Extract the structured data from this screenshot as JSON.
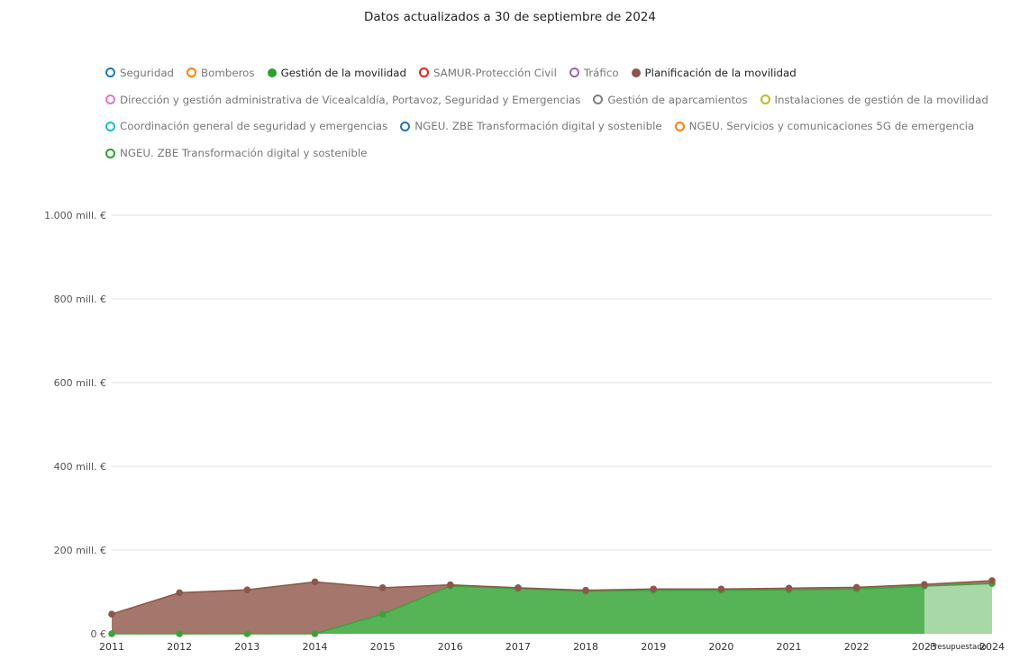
{
  "title": "Datos actualizados a 30 de septiembre de 2024",
  "legend": [
    {
      "label": "Seguridad",
      "color": "#1f77b4",
      "active": false
    },
    {
      "label": "Bomberos",
      "color": "#ff7f0e",
      "active": false
    },
    {
      "label": "Gestión de la movilidad",
      "color": "#2ca02c",
      "active": true
    },
    {
      "label": "SAMUR-Protección Civil",
      "color": "#d62728",
      "active": false
    },
    {
      "label": "Tráfico",
      "color": "#9467bd",
      "active": false
    },
    {
      "label": "Planificación de la movilidad",
      "color": "#8c564b",
      "active": true
    },
    {
      "label": "Dirección y gestión administrativa de Vicealcaldía, Portavoz, Seguridad y Emergencias",
      "color": "#e377c2",
      "active": false
    },
    {
      "label": "Gestión de aparcamientos",
      "color": "#7f7f7f",
      "active": false
    },
    {
      "label": "Instalaciones de gestión de la movilidad",
      "color": "#bcbd22",
      "active": false
    },
    {
      "label": "Coordinación general de seguridad y emergencias",
      "color": "#17becf",
      "active": false
    },
    {
      "label": "NGEU. ZBE Transformación digital y sostenible",
      "color": "#1f77b4",
      "active": false
    },
    {
      "label": "NGEU. Servicios y comunicaciones 5G de emergencia",
      "color": "#ff7f0e",
      "active": false
    },
    {
      "label": "NGEU. ZBE Transformación digital y sostenible",
      "color": "#2ca02c",
      "active": false
    }
  ],
  "chart_data": {
    "type": "area",
    "x": [
      "2011",
      "2012",
      "2013",
      "2014",
      "2015",
      "2016",
      "2017",
      "2018",
      "2019",
      "2020",
      "2021",
      "2022",
      "2023",
      "2024"
    ],
    "yticks": [
      {
        "value": 0,
        "label": "0 €"
      },
      {
        "value": 200,
        "label": "200 mill. €"
      },
      {
        "value": 400,
        "label": "400 mill. €"
      },
      {
        "value": 600,
        "label": "600 mill. €"
      },
      {
        "value": 800,
        "label": "800 mill. €"
      },
      {
        "value": 1000,
        "label": "1.000 mill. €"
      }
    ],
    "ylim": [
      0,
      1000
    ],
    "stacked": true,
    "grid": true,
    "series": [
      {
        "name": "Gestión de la movilidad",
        "color": "#56b356",
        "marker": "#3da23d",
        "values": [
          0,
          0,
          0,
          0,
          47,
          114,
          108,
          102,
          104,
          104,
          105,
          107,
          114,
          120
        ]
      },
      {
        "name": "Planificación de la movilidad",
        "color": "#a5766b",
        "marker": "#8c564b",
        "values": [
          47,
          98,
          105,
          124,
          63,
          3,
          2,
          2,
          3,
          3,
          4,
          4,
          4,
          7
        ]
      }
    ],
    "annotation": {
      "label": "Presupuestado",
      "from": "2023",
      "to": "2024",
      "color": "#a8d8a8"
    }
  }
}
